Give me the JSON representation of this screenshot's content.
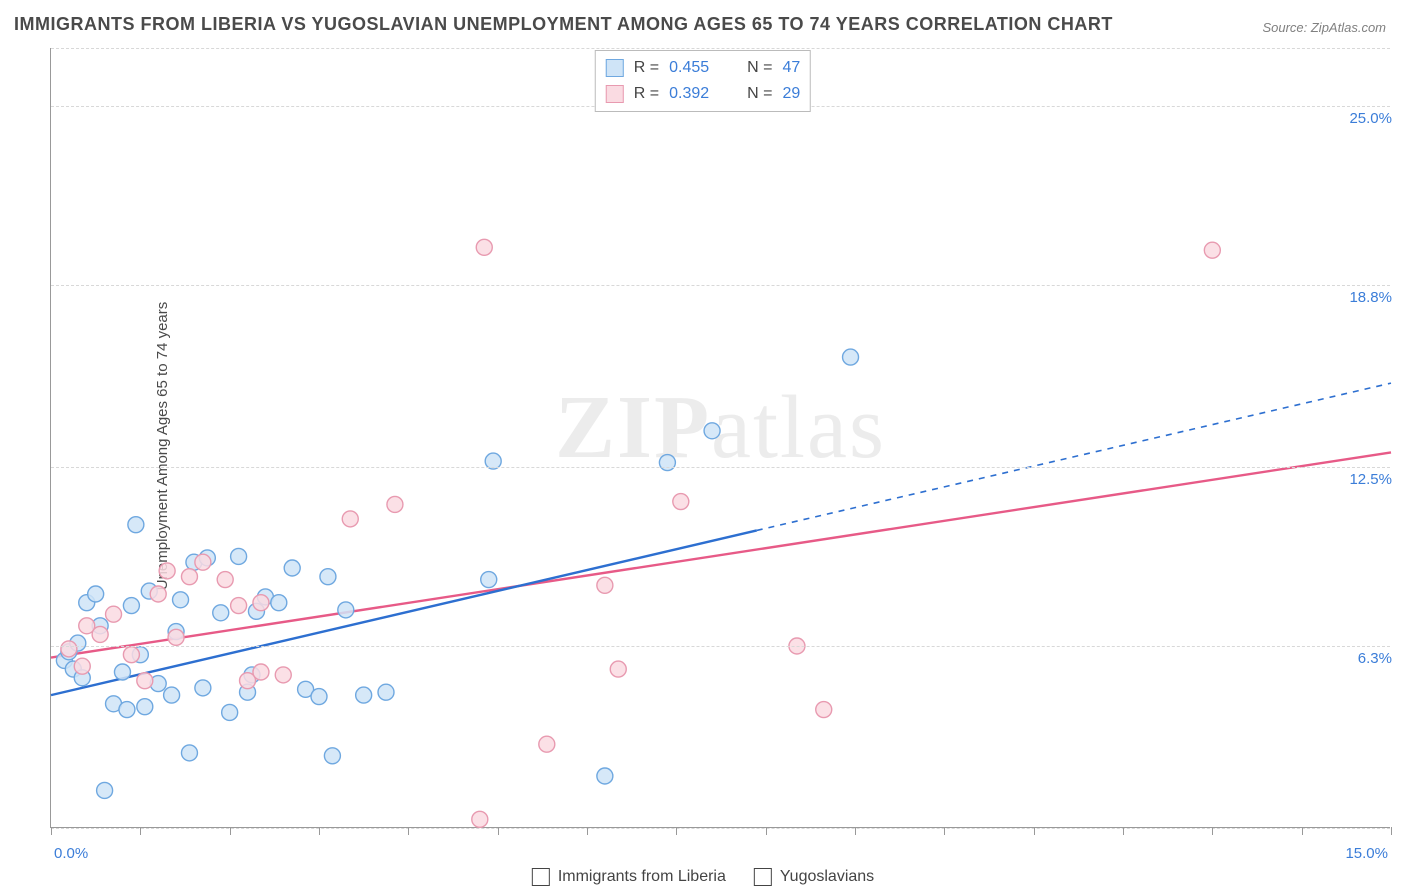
{
  "title": "IMMIGRANTS FROM LIBERIA VS YUGOSLAVIAN UNEMPLOYMENT AMONG AGES 65 TO 74 YEARS CORRELATION CHART",
  "source_label": "Source: ZipAtlas.com",
  "y_axis_label": "Unemployment Among Ages 65 to 74 years",
  "watermark": {
    "bold": "ZIP",
    "rest": "atlas"
  },
  "chart": {
    "type": "scatter",
    "xlim": [
      0,
      15
    ],
    "ylim": [
      0,
      27
    ],
    "x_tick_step": 1.0,
    "x_axis_start_label": "0.0%",
    "x_axis_end_label": "15.0%",
    "y_ticks": [
      {
        "value": 6.3,
        "label": "6.3%"
      },
      {
        "value": 12.5,
        "label": "12.5%"
      },
      {
        "value": 18.8,
        "label": "18.8%"
      },
      {
        "value": 25.0,
        "label": "25.0%"
      }
    ],
    "y_gridlines": [
      0,
      6.3,
      12.5,
      18.8,
      25.0,
      27
    ],
    "background_color": "#ffffff",
    "grid_color": "#d8d8d8",
    "axis_color": "#999999",
    "axis_label_color": "#3b7dd8",
    "marker_radius": 8,
    "marker_stroke_width": 1.4,
    "line_width_solid": 2.4,
    "line_width_dashed": 1.6,
    "series": {
      "liberia": {
        "label": "Immigrants from Liberia",
        "fill": "#cfe4f7",
        "stroke": "#6fa8e0",
        "line_color": "#2d6fd0",
        "reg_start": [
          0.0,
          4.6
        ],
        "reg_solid_end": [
          7.9,
          10.3
        ],
        "reg_dashed_end": [
          15.0,
          15.4
        ],
        "points": [
          [
            0.15,
            5.8
          ],
          [
            0.2,
            6.1
          ],
          [
            0.25,
            5.5
          ],
          [
            0.3,
            6.4
          ],
          [
            0.35,
            5.2
          ],
          [
            0.4,
            7.8
          ],
          [
            0.5,
            8.1
          ],
          [
            0.55,
            7.0
          ],
          [
            0.6,
            1.3
          ],
          [
            0.7,
            4.3
          ],
          [
            0.8,
            5.4
          ],
          [
            0.85,
            4.1
          ],
          [
            0.9,
            7.7
          ],
          [
            0.95,
            10.5
          ],
          [
            1.0,
            6.0
          ],
          [
            1.05,
            4.2
          ],
          [
            1.1,
            8.2
          ],
          [
            1.2,
            5.0
          ],
          [
            1.35,
            4.6
          ],
          [
            1.4,
            6.8
          ],
          [
            1.45,
            7.9
          ],
          [
            1.55,
            2.6
          ],
          [
            1.6,
            9.2
          ],
          [
            1.7,
            4.85
          ],
          [
            1.75,
            9.35
          ],
          [
            1.9,
            7.45
          ],
          [
            2.0,
            4.0
          ],
          [
            2.1,
            9.4
          ],
          [
            2.2,
            4.7
          ],
          [
            2.25,
            5.3
          ],
          [
            2.3,
            7.5
          ],
          [
            2.4,
            8.0
          ],
          [
            2.55,
            7.8
          ],
          [
            2.7,
            9.0
          ],
          [
            2.85,
            4.8
          ],
          [
            3.0,
            4.55
          ],
          [
            3.1,
            8.7
          ],
          [
            3.15,
            2.5
          ],
          [
            3.3,
            7.55
          ],
          [
            3.5,
            4.6
          ],
          [
            3.75,
            4.7
          ],
          [
            4.9,
            8.6
          ],
          [
            4.95,
            12.7
          ],
          [
            6.2,
            1.8
          ],
          [
            6.9,
            12.65
          ],
          [
            7.4,
            13.75
          ],
          [
            8.95,
            16.3
          ]
        ]
      },
      "yugoslavians": {
        "label": "Yugoslavians",
        "fill": "#fadbe2",
        "stroke": "#e89ab0",
        "line_color": "#e75a87",
        "reg_start": [
          0.0,
          5.9
        ],
        "reg_end": [
          15.0,
          13.0
        ],
        "points": [
          [
            0.2,
            6.2
          ],
          [
            0.35,
            5.6
          ],
          [
            0.4,
            7.0
          ],
          [
            0.55,
            6.7
          ],
          [
            0.7,
            7.4
          ],
          [
            0.9,
            6.0
          ],
          [
            1.05,
            5.1
          ],
          [
            1.2,
            8.1
          ],
          [
            1.3,
            8.9
          ],
          [
            1.4,
            6.6
          ],
          [
            1.55,
            8.7
          ],
          [
            1.7,
            9.2
          ],
          [
            1.95,
            8.6
          ],
          [
            2.1,
            7.7
          ],
          [
            2.2,
            5.1
          ],
          [
            2.35,
            5.4
          ],
          [
            2.35,
            7.8
          ],
          [
            2.6,
            5.3
          ],
          [
            3.35,
            10.7
          ],
          [
            3.85,
            11.2
          ],
          [
            4.8,
            0.3
          ],
          [
            4.85,
            20.1
          ],
          [
            5.55,
            2.9
          ],
          [
            6.2,
            8.4
          ],
          [
            6.35,
            5.5
          ],
          [
            7.05,
            11.3
          ],
          [
            8.35,
            6.3
          ],
          [
            8.65,
            4.1
          ],
          [
            13.0,
            20.0
          ]
        ]
      }
    },
    "stats_legend": [
      {
        "series": "liberia",
        "R": "0.455",
        "N": "47"
      },
      {
        "series": "yugoslavians",
        "R": "0.392",
        "N": "29"
      }
    ]
  }
}
